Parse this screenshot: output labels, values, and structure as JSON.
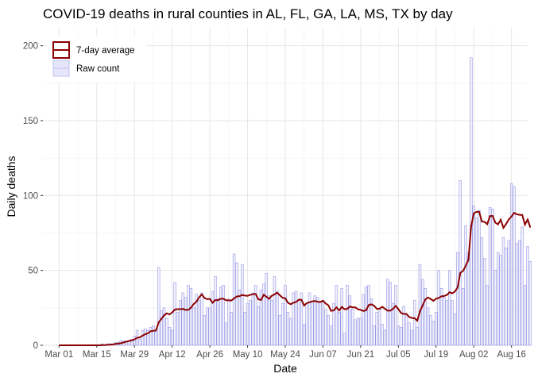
{
  "chart_data": {
    "type": "bar",
    "title": "COVID-19 deaths in rural counties in AL, FL, GA, LA, MS, TX by day",
    "xlabel": "Date",
    "ylabel": "Daily deaths",
    "x_start": "2020-03-01",
    "x_ticks": [
      {
        "date": "2020-03-01",
        "label": "Mar 01"
      },
      {
        "date": "2020-03-15",
        "label": "Mar 15"
      },
      {
        "date": "2020-03-29",
        "label": "Mar 29"
      },
      {
        "date": "2020-04-12",
        "label": "Apr 12"
      },
      {
        "date": "2020-04-26",
        "label": "Apr 26"
      },
      {
        "date": "2020-05-10",
        "label": "May 10"
      },
      {
        "date": "2020-05-24",
        "label": "May 24"
      },
      {
        "date": "2020-06-07",
        "label": "Jun 07"
      },
      {
        "date": "2020-06-21",
        "label": "Jun 21"
      },
      {
        "date": "2020-07-05",
        "label": "Jul 05"
      },
      {
        "date": "2020-07-19",
        "label": "Jul 19"
      },
      {
        "date": "2020-08-02",
        "label": "Aug 02"
      },
      {
        "date": "2020-08-16",
        "label": "Aug 16"
      }
    ],
    "xlim": [
      "2020-02-24",
      "2020-08-22"
    ],
    "ylim": [
      0,
      212
    ],
    "y_ticks": [
      0,
      50,
      100,
      150,
      200
    ],
    "grid": true,
    "legend_position": "top-left",
    "series": [
      {
        "name": "Raw count",
        "type": "bar",
        "color": "#9999e6",
        "values": [
          0,
          0,
          0,
          0,
          0,
          0,
          0,
          0,
          0,
          0,
          0,
          0,
          0,
          0,
          0,
          0,
          1,
          0,
          1,
          1,
          1,
          2,
          2,
          3,
          3,
          3,
          3,
          4,
          6,
          10,
          4,
          10,
          11,
          10,
          12,
          13,
          9,
          52,
          23,
          25,
          18,
          12,
          10,
          42,
          22,
          30,
          35,
          32,
          40,
          38,
          25,
          34,
          30,
          35,
          20,
          25,
          25,
          36,
          46,
          31,
          39,
          40,
          15,
          31,
          22,
          61,
          55,
          37,
          54,
          22,
          28,
          30,
          35,
          40,
          26,
          37,
          41,
          48,
          33,
          30,
          46,
          36,
          20,
          28,
          40,
          22,
          18,
          35,
          36,
          30,
          35,
          14,
          28,
          35,
          29,
          33,
          32,
          29,
          30,
          24,
          20,
          13,
          28,
          40,
          22,
          38,
          8,
          40,
          33,
          24,
          17,
          18,
          18,
          34,
          39,
          40,
          31,
          13,
          22,
          24,
          14,
          10,
          44,
          42,
          28,
          40,
          13,
          12,
          26,
          20,
          15,
          10,
          30,
          12,
          54,
          44,
          38,
          25,
          20,
          16,
          22,
          50,
          38,
          32,
          30,
          50,
          30,
          21,
          62,
          110,
          38,
          80,
          62,
          192,
          93,
          85,
          90,
          72,
          58,
          40,
          92,
          91,
          50,
          62,
          60,
          72,
          65,
          70,
          108,
          106,
          68,
          70,
          79,
          40,
          66,
          56
        ]
      },
      {
        "name": "7-day average",
        "type": "line",
        "color": "#8b0000",
        "values": [
          0,
          0,
          0,
          0,
          0,
          0,
          0,
          0,
          0,
          0,
          0,
          0,
          0,
          0,
          0,
          0,
          0.1,
          0.1,
          0.3,
          0.4,
          0.6,
          0.9,
          1.1,
          1.4,
          1.9,
          2.4,
          2.9,
          3.3,
          3.9,
          5.0,
          5.3,
          6.4,
          7.4,
          8.0,
          9.4,
          9.7,
          9.9,
          15.4,
          17.6,
          20.0,
          21.3,
          20.6,
          21.9,
          23.9,
          24.1,
          24.1,
          24.3,
          23.6,
          23.7,
          25.1,
          27.6,
          29.1,
          32.0,
          34.0,
          31.6,
          30.8,
          31.0,
          28.4,
          30.2,
          30.1,
          31.1,
          31.1,
          30.1,
          30.0,
          29.9,
          31.3,
          32.6,
          32.8,
          33.6,
          33.2,
          33.0,
          33.7,
          34.1,
          34.3,
          30.7,
          30.3,
          33.7,
          32.4,
          31.0,
          33.1,
          34.0,
          35.1,
          33.4,
          31.7,
          31.4,
          28.4,
          27.4,
          28.4,
          28.9,
          30.4,
          30.4,
          26.6,
          28.2,
          28.7,
          29.3,
          29.6,
          29.1,
          28.9,
          29.7,
          27.9,
          26.7,
          23.0,
          23.3,
          25.3,
          23.3,
          25.6,
          24.1,
          24.3,
          25.9,
          25.3,
          25.3,
          24.1,
          23.6,
          22.9,
          23.4,
          26.9,
          27.3,
          26.4,
          24.3,
          24.4,
          25.7,
          24.4,
          23.1,
          23.1,
          24.3,
          26.3,
          24.1,
          21.6,
          20.9,
          21.0,
          18.9,
          18.2,
          18.1,
          16.4,
          22.6,
          26.6,
          30.6,
          31.9,
          30.9,
          29.7,
          31.1,
          31.6,
          32.7,
          32.9,
          33.6,
          35.4,
          34.7,
          35.9,
          38.7,
          48.4,
          49.6,
          53.1,
          57.0,
          79.0,
          88.1,
          89.1,
          89.1,
          82.6,
          82.4,
          80.9,
          86.3,
          86.4,
          81.9,
          80.7,
          83.9,
          78.4,
          81.0,
          84.0,
          86.0,
          88.4,
          87.4,
          87.1,
          87.0,
          80.6,
          84.0,
          78.6
        ]
      }
    ]
  }
}
